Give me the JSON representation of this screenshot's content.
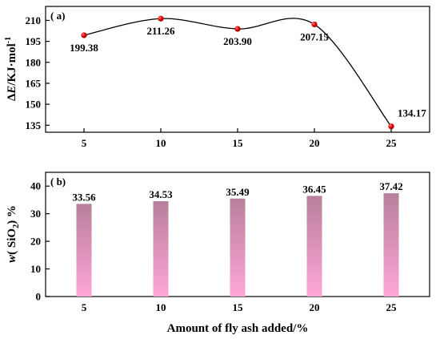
{
  "chart_data": [
    {
      "type": "line",
      "panel_label": "( a)",
      "x": [
        5,
        10,
        15,
        20,
        25
      ],
      "series": [
        {
          "values": [
            199.38,
            211.26,
            203.9,
            207.15,
            134.17
          ],
          "color": "#e00000"
        }
      ],
      "data_labels": [
        "199.38",
        "211.26",
        "203.90",
        "207.15",
        "134.17"
      ],
      "xticks": [
        "5",
        "10",
        "15",
        "20",
        "25"
      ],
      "yticks": [
        "135",
        "150",
        "165",
        "180",
        "195",
        "210"
      ],
      "ylim": [
        130,
        220
      ],
      "xlim": [
        2.5,
        27.5
      ],
      "ylabel": "ΔE/KJ·mol⁻¹",
      "ylabel_parts": {
        "delta": "Δ",
        "e": "E",
        "unit": "/KJ·mol",
        "sup": "-1"
      },
      "line_color": "#000000",
      "grid": false
    },
    {
      "type": "bar",
      "panel_label": "( b)",
      "categories": [
        "5",
        "10",
        "15",
        "20",
        "25"
      ],
      "values": [
        33.56,
        34.53,
        35.49,
        36.45,
        37.42
      ],
      "data_labels": [
        "33.56",
        "34.53",
        "35.49",
        "36.45",
        "37.42"
      ],
      "yticks": [
        "0",
        "10",
        "20",
        "30",
        "40"
      ],
      "ylim": [
        0,
        45
      ],
      "ylabel": "w( SiO₂)  %",
      "ylabel_parts": {
        "w": "w",
        "mid": "( SiO",
        "sub": "2",
        "end": ")   %"
      },
      "xlabel": "Amount of fly ash added/%",
      "bar_gradient": {
        "top": "#b87f9c",
        "bottom": "#ffa6d6"
      },
      "grid": false
    }
  ]
}
